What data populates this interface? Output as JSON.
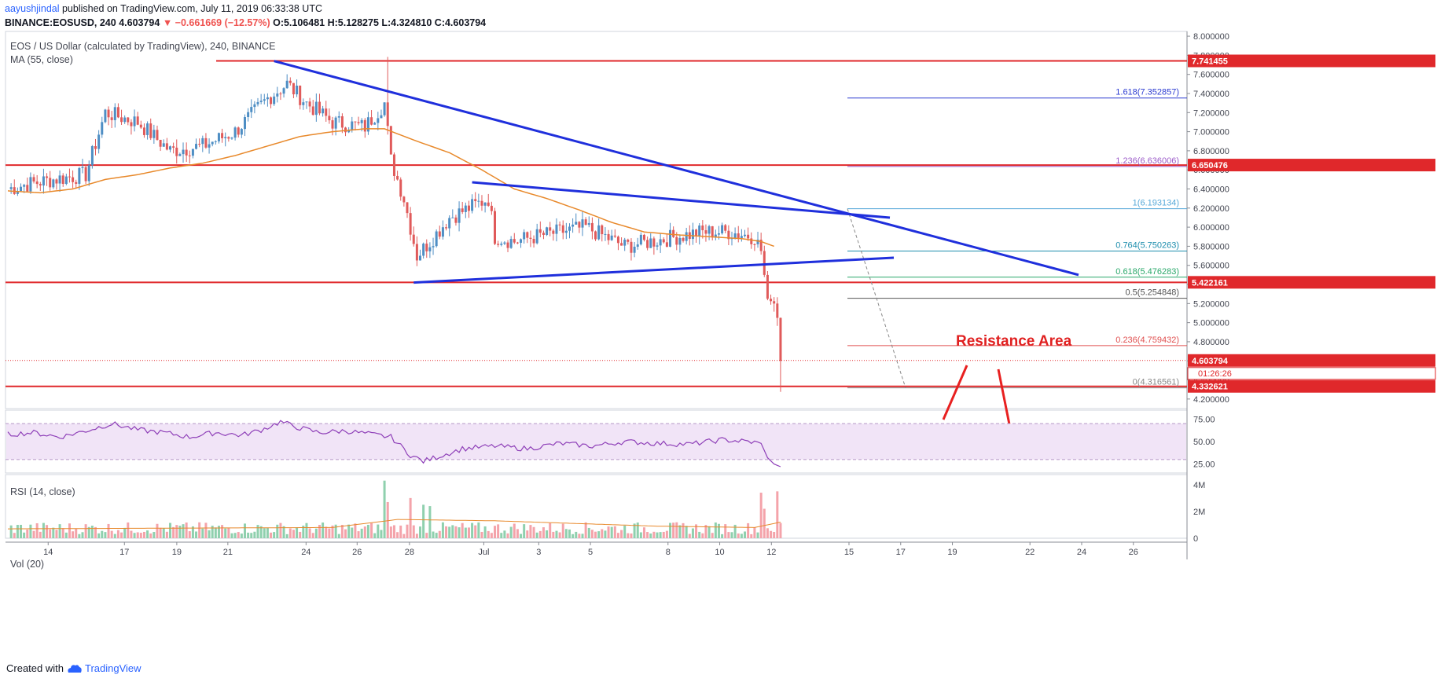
{
  "header": {
    "author": "aayushjindal",
    "published": "published on TradingView.com, July 11, 2019 06:33:38 UTC",
    "symbol_line": "BINANCE:EOSUSD, 240",
    "last": "4.603794",
    "change": "−0.661669 (−12.57%)",
    "ohlc": "O:5.106481 H:5.128275 L:4.324810 C:4.603794"
  },
  "price_pane": {
    "title": "EOS / US Dollar (calculated by TradingView), 240, BINANCE",
    "ma_label": "MA (55, close)",
    "annotation": "Resistance Area"
  },
  "rsi_pane": {
    "title": "RSI (14, close)"
  },
  "vol_pane": {
    "title": "Vol (20)"
  },
  "footer": {
    "created_with": "Created with",
    "brand": "TradingView"
  },
  "colors": {
    "up": "#4e8ec4",
    "down": "#e05a5a",
    "ma": "#e8892b",
    "trend": "#1f2fdc",
    "level": "#e0282b",
    "rsi": "#8e3fb8",
    "rsi_band": "#f1e4f7",
    "vol_up": "#8fd0ae",
    "vol_down": "#f4a3aa"
  },
  "chart_data": {
    "type": "candlestick",
    "title": "EOS / US Dollar (calculated by TradingView), 240, BINANCE",
    "timeframe": "240",
    "x_tick_labels": [
      "14",
      "17",
      "19",
      "21",
      "24",
      "26",
      "28",
      "Jul",
      "3",
      "5",
      "8",
      "10",
      "12",
      "15",
      "17",
      "19",
      "22",
      "24",
      "26"
    ],
    "y_tick_labels": [
      "4.200000",
      "4.400000",
      "4.600000",
      "4.800000",
      "5.000000",
      "5.200000",
      "5.400000",
      "5.600000",
      "5.800000",
      "6.000000",
      "6.200000",
      "6.400000",
      "6.600000",
      "6.800000",
      "7.000000",
      "7.200000",
      "7.400000",
      "7.600000",
      "7.800000",
      "8.000000"
    ],
    "ylim": [
      4.1,
      8.05
    ],
    "horizontal_levels": [
      {
        "value": 7.741455,
        "label": "7.741455"
      },
      {
        "value": 6.650476,
        "label": "6.650476"
      },
      {
        "value": 5.422161,
        "label": "5.422161"
      },
      {
        "value": 4.332621,
        "label": "4.332621"
      }
    ],
    "last_price": {
      "value": 4.603794,
      "label": "4.603794",
      "countdown": "01:26:26"
    },
    "fibonacci": [
      {
        "ratio": "1.618",
        "value": 7.352857,
        "label": "1.618(7.352857)",
        "color": "#2b3bd1"
      },
      {
        "ratio": "1.236",
        "value": 6.636006,
        "label": "1.236(6.636006)",
        "color": "#9c5cc9"
      },
      {
        "ratio": "1",
        "value": 6.193134,
        "label": "1(6.193134)",
        "color": "#56a8d8"
      },
      {
        "ratio": "0.764",
        "value": 5.750263,
        "label": "0.764(5.750263)",
        "color": "#1c8dad"
      },
      {
        "ratio": "0.618",
        "value": 5.476283,
        "label": "0.618(5.476283)",
        "color": "#29a86a"
      },
      {
        "ratio": "0.5",
        "value": 5.254848,
        "label": "0.5(5.254848)",
        "color": "#555555"
      },
      {
        "ratio": "0.236",
        "value": 4.759432,
        "label": "0.236(4.759432)",
        "color": "#e05050"
      },
      {
        "ratio": "0",
        "value": 4.316561,
        "label": "0(4.316561)",
        "color": "#888888"
      }
    ],
    "ma55_anchors": [
      [
        0,
        6.38
      ],
      [
        10,
        6.36
      ],
      [
        20,
        6.4
      ],
      [
        30,
        6.5
      ],
      [
        40,
        6.55
      ],
      [
        50,
        6.62
      ],
      [
        60,
        6.67
      ],
      [
        70,
        6.75
      ],
      [
        80,
        6.85
      ],
      [
        90,
        6.95
      ],
      [
        100,
        7.0
      ],
      [
        110,
        7.03
      ],
      [
        116,
        7.03
      ],
      [
        126,
        6.9
      ],
      [
        136,
        6.78
      ],
      [
        146,
        6.6
      ],
      [
        156,
        6.4
      ],
      [
        166,
        6.3
      ],
      [
        176,
        6.18
      ],
      [
        186,
        6.05
      ],
      [
        196,
        5.95
      ],
      [
        206,
        5.92
      ],
      [
        216,
        5.9
      ],
      [
        226,
        5.88
      ],
      [
        232,
        5.85
      ],
      [
        236,
        5.8
      ]
    ],
    "rsi": {
      "ylim": [
        15,
        85
      ],
      "tick_labels": [
        "25.00",
        "50.00",
        "75.00"
      ],
      "upper": 70,
      "lower": 30,
      "anchors": [
        [
          0,
          58
        ],
        [
          8,
          60
        ],
        [
          16,
          55
        ],
        [
          24,
          62
        ],
        [
          32,
          70
        ],
        [
          40,
          63
        ],
        [
          48,
          60
        ],
        [
          56,
          55
        ],
        [
          64,
          60
        ],
        [
          72,
          57
        ],
        [
          78,
          63
        ],
        [
          84,
          72
        ],
        [
          90,
          65
        ],
        [
          96,
          60
        ],
        [
          104,
          62
        ],
        [
          112,
          58
        ],
        [
          118,
          55
        ],
        [
          124,
          35
        ],
        [
          128,
          28
        ],
        [
          134,
          35
        ],
        [
          140,
          42
        ],
        [
          150,
          45
        ],
        [
          160,
          42
        ],
        [
          170,
          48
        ],
        [
          180,
          45
        ],
        [
          190,
          50
        ],
        [
          200,
          48
        ],
        [
          210,
          47
        ],
        [
          220,
          52
        ],
        [
          228,
          50
        ],
        [
          232,
          48
        ],
        [
          234,
          32
        ],
        [
          236,
          25
        ],
        [
          238,
          22
        ]
      ]
    },
    "volume": {
      "tick_labels": [
        "0",
        "2M",
        "4M"
      ],
      "ylim": [
        0,
        4400000
      ],
      "spikes": [
        [
          116,
          4300000
        ],
        [
          117,
          2700000
        ],
        [
          124,
          3000000
        ],
        [
          128,
          2500000
        ],
        [
          130,
          2400000
        ],
        [
          232,
          3400000
        ],
        [
          233,
          2200000
        ],
        [
          237,
          3500000
        ]
      ]
    },
    "candle_count": 238,
    "key_points": [
      [
        0,
        6.4
      ],
      [
        6,
        6.45
      ],
      [
        14,
        6.5
      ],
      [
        24,
        6.55
      ],
      [
        30,
        7.2
      ],
      [
        40,
        7.1
      ],
      [
        50,
        6.8
      ],
      [
        60,
        6.85
      ],
      [
        70,
        7.0
      ],
      [
        80,
        7.35
      ],
      [
        86,
        7.5
      ],
      [
        92,
        7.3
      ],
      [
        100,
        7.1
      ],
      [
        110,
        7.05
      ],
      [
        116,
        7.3
      ],
      [
        118,
        6.7
      ],
      [
        122,
        6.3
      ],
      [
        126,
        5.7
      ],
      [
        130,
        5.85
      ],
      [
        136,
        6.1
      ],
      [
        142,
        6.2
      ],
      [
        148,
        6.3
      ],
      [
        150,
        5.9
      ],
      [
        156,
        5.85
      ],
      [
        162,
        5.9
      ],
      [
        170,
        5.95
      ],
      [
        178,
        6.0
      ],
      [
        184,
        5.9
      ],
      [
        190,
        5.8
      ],
      [
        198,
        5.85
      ],
      [
        206,
        5.9
      ],
      [
        214,
        5.95
      ],
      [
        222,
        5.95
      ],
      [
        230,
        5.9
      ],
      [
        232,
        5.75
      ],
      [
        234,
        5.25
      ],
      [
        236,
        5.2
      ],
      [
        237,
        5.05
      ],
      [
        238,
        4.6
      ]
    ]
  }
}
